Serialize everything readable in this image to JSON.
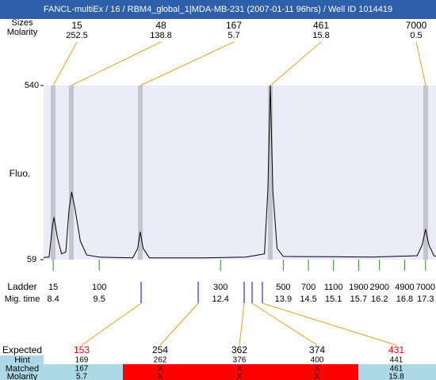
{
  "header": {
    "title": "FANCL-multiEx / 16 / RBM4_global_1|MDA-MB-231 (2007-01-11 96hrs) / Well ID 1014419"
  },
  "peaks": {
    "size_label": "Sizes",
    "molarity_label": "Molarity",
    "sizes": [
      15,
      48,
      167,
      461,
      7000
    ],
    "molarity": [
      252.5,
      138.8,
      5.7,
      15.8,
      0.5
    ]
  },
  "chart_data": {
    "type": "line",
    "ylabel": "Fluo.",
    "color": "#000000",
    "xlim": [
      8.17,
      17.55
    ],
    "ylim": [
      59,
      540
    ],
    "yticks": [
      59,
      540
    ],
    "x": [
      8.17,
      8.3,
      8.38,
      8.42,
      8.5,
      8.6,
      8.7,
      8.78,
      8.84,
      8.92,
      9.05,
      9.2,
      9.5,
      10.3,
      10.42,
      10.48,
      10.55,
      10.7,
      12.0,
      13.0,
      13.45,
      13.53,
      13.59,
      13.65,
      13.75,
      13.9,
      15.0,
      16.0,
      17.1,
      17.22,
      17.3,
      17.38,
      17.5,
      17.55
    ],
    "values": [
      65,
      66,
      150,
      176,
      120,
      75,
      80,
      200,
      246,
      200,
      110,
      72,
      66,
      64,
      90,
      136,
      90,
      64,
      64,
      66,
      75,
      250,
      540,
      250,
      90,
      68,
      67,
      66,
      70,
      100,
      143,
      100,
      70,
      68
    ]
  },
  "ladder": {
    "label": "Ladder",
    "time_label": "Mig. time",
    "sizes": [
      15,
      100,
      300,
      500,
      700,
      1100,
      1900,
      2900,
      4900,
      7000
    ],
    "times": [
      8.4,
      9.5,
      12.4,
      13.9,
      14.5,
      15.1,
      15.7,
      16.2,
      16.8,
      17.3
    ]
  },
  "table": {
    "labels": [
      "Expected",
      "Hint",
      "Matched",
      "Molarity"
    ],
    "expected": [
      153,
      254,
      362,
      374,
      431
    ],
    "expected_colors": [
      "#ff0000",
      "#000000",
      "#000000",
      "#000000",
      "#ff0000"
    ],
    "hint": [
      169,
      262,
      376,
      400,
      441
    ],
    "matched": [
      167,
      "X",
      "X",
      "X",
      461
    ],
    "molarity": [
      5.7,
      "X",
      "X",
      "X",
      15.8
    ]
  }
}
